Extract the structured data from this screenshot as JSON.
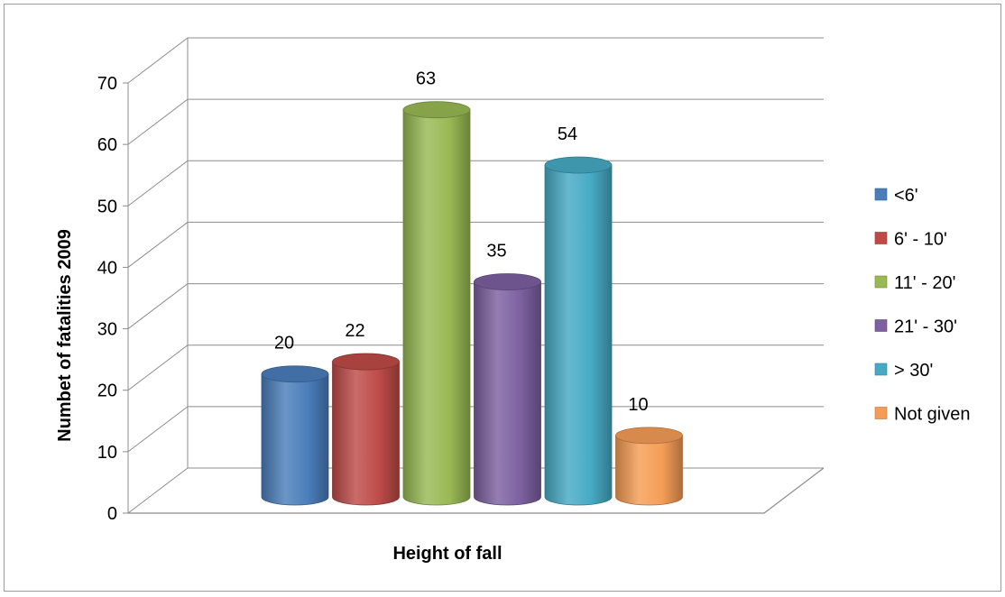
{
  "chart_data": {
    "type": "bar",
    "title": "",
    "xlabel": "Height of fall",
    "ylabel": "Numbet of fatalities 2009",
    "ylim": [
      0,
      70
    ],
    "yticks": [
      "0",
      "10",
      "20",
      "30",
      "40",
      "50",
      "60",
      "70"
    ],
    "grid": true,
    "legend_position": "right",
    "series": [
      {
        "name": "<6'",
        "value": 20,
        "label": "20",
        "color": "#4a7ebb"
      },
      {
        "name": "6' - 10'",
        "value": 22,
        "label": "22",
        "color": "#be4b48"
      },
      {
        "name": "11' - 20'",
        "value": 63,
        "label": "63",
        "color": "#98b954"
      },
      {
        "name": "21' - 30'",
        "value": 35,
        "label": "35",
        "color": "#7d60a0"
      },
      {
        "name": "> 30'",
        "value": 54,
        "label": "54",
        "color": "#46aac5"
      },
      {
        "name": "Not given",
        "value": 10,
        "label": "10",
        "color": "#f59d56"
      }
    ]
  }
}
